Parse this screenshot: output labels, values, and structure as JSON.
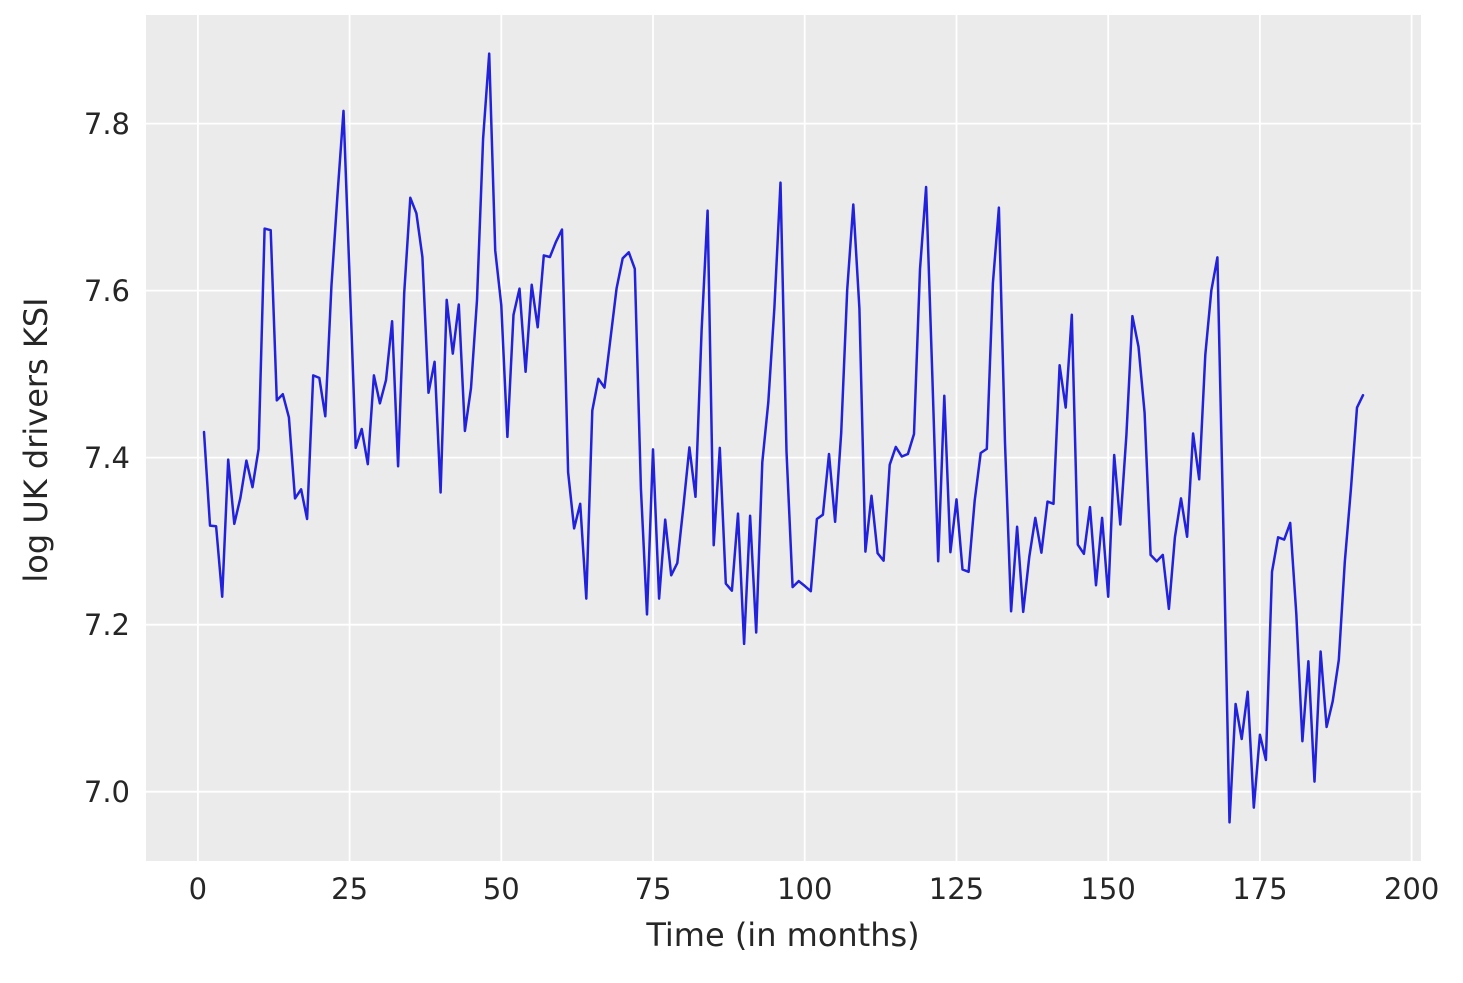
{
  "figure": {
    "background": "#ffffff",
    "plot_background": "#ebebeb",
    "grid_color": "#ffffff",
    "axis_text_color": "#262626",
    "line_color": "#2222dd"
  },
  "chart_data": {
    "type": "line",
    "title": "",
    "xlabel": "Time (in months)",
    "ylabel": "log UK drivers KSI",
    "x_start": 1,
    "x_step": 1,
    "xlim": [
      -8.55,
      201.55
    ],
    "ylim": [
      6.917,
      7.93
    ],
    "xticks": [
      0,
      25,
      50,
      75,
      100,
      125,
      150,
      175,
      200
    ],
    "yticks": [
      7.0,
      7.2,
      7.4,
      7.6,
      7.8
    ],
    "grid": true,
    "legend": false,
    "series": [
      {
        "name": "log UK drivers KSI",
        "color": "#2222dd",
        "values": [
          7.4307,
          7.3186,
          7.3179,
          7.2335,
          7.3976,
          7.3206,
          7.3519,
          7.3964,
          7.3646,
          7.4104,
          7.6742,
          7.6723,
          7.4685,
          7.4759,
          7.4483,
          7.3512,
          7.3621,
          7.3265,
          7.4984,
          7.4955,
          7.4495,
          7.6049,
          7.7151,
          7.8152,
          7.6158,
          7.4116,
          7.4343,
          7.3921,
          7.4984,
          7.465,
          7.4928,
          7.5633,
          7.3896,
          7.5969,
          7.7111,
          7.6925,
          7.6402,
          7.4776,
          7.5148,
          7.3583,
          7.5889,
          7.5246,
          7.5833,
          7.4319,
          7.4833,
          7.5889,
          7.782,
          7.8838,
          7.6484,
          7.5823,
          7.4248,
          7.571,
          7.6024,
          7.5028,
          7.6069,
          7.556,
          7.6421,
          7.6402,
          7.6583,
          7.6732,
          7.3827,
          7.3152,
          7.3447,
          7.2312,
          7.4564,
          7.4944,
          7.4838,
          7.5428,
          7.6029,
          7.6387,
          7.6459,
          7.6261,
          7.3633,
          7.2123,
          7.4098,
          7.2312,
          7.3258,
          7.2591,
          7.2737,
          7.3415,
          7.4122,
          7.3531,
          7.5523,
          7.6958,
          7.2951,
          7.4116,
          7.2492,
          7.2407,
          7.333,
          7.177,
          7.3304,
          7.1906,
          7.3945,
          7.4662,
          7.5797,
          7.7293,
          7.4073,
          7.245,
          7.2521,
          7.2464,
          7.24,
          7.3265,
          7.3317,
          7.4043,
          7.3232,
          7.4295,
          7.6009,
          7.7031,
          7.5787,
          7.2875,
          7.3544,
          7.2855,
          7.2766,
          7.3914,
          7.4128,
          7.4013,
          7.4043,
          7.4283,
          7.6256,
          7.724,
          7.5028,
          7.2759,
          7.4742,
          7.2868,
          7.35,
          7.2661,
          7.2633,
          7.3487,
          7.4055,
          7.4104,
          7.6089,
          7.6994,
          7.4176,
          7.216,
          7.3172,
          7.2153,
          7.2814,
          7.3278,
          7.2862,
          7.3474,
          7.3447,
          7.5105,
          7.4599,
          7.571,
          7.2957,
          7.2848,
          7.3408,
          7.2471,
          7.3278,
          7.2335,
          7.4031,
          7.3199,
          7.4271,
          7.5695,
          7.5327,
          7.4535,
          7.2835,
          7.2759,
          7.2835,
          7.2189,
          7.3046,
          7.3512,
          7.3052,
          7.4289,
          7.374,
          7.523,
          7.5999,
          7.6397,
          7.3092,
          6.9632,
          7.105,
          7.0631,
          7.1197,
          6.981,
          7.0682,
          7.0379,
          7.2633,
          7.3046,
          7.3018,
          7.3219,
          7.213,
          7.0605,
          7.1562,
          7.0121,
          7.1679,
          7.0775,
          7.1082,
          7.1578,
          7.2752,
          7.3621,
          7.4599,
          7.4748
        ]
      }
    ]
  }
}
